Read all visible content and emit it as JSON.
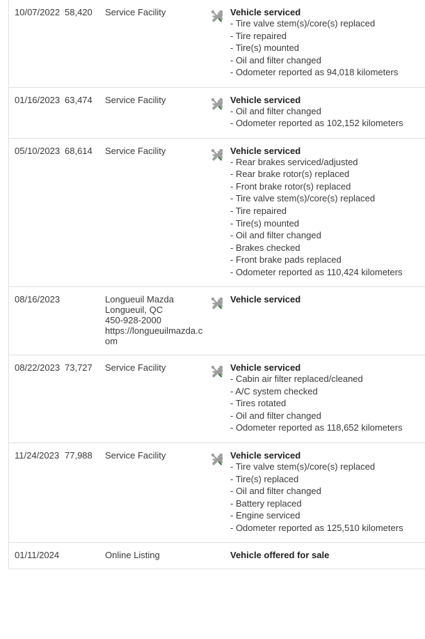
{
  "colors": {
    "border": "#e0e0e0",
    "text": "#3a3a3a",
    "heading": "#222222",
    "icon_wrench": "#9e9e9e",
    "icon_accent": "#2e7d32"
  },
  "rows": [
    {
      "date": "10/07/2022",
      "mileage": "58,420",
      "source_lines": [
        "Service Facility"
      ],
      "has_icon": true,
      "heading": "Vehicle serviced",
      "details": [
        "- Tire valve stem(s)/core(s) replaced",
        "- Tire repaired",
        "- Tire(s) mounted",
        "- Oil and filter changed",
        "- Odometer reported as 94,018 kilometers"
      ]
    },
    {
      "date": "01/16/2023",
      "mileage": "63,474",
      "source_lines": [
        "Service Facility"
      ],
      "has_icon": true,
      "heading": "Vehicle serviced",
      "details": [
        "- Oil and filter changed",
        "- Odometer reported as 102,152 kilometers"
      ]
    },
    {
      "date": "05/10/2023",
      "mileage": "68,614",
      "source_lines": [
        "Service Facility"
      ],
      "has_icon": true,
      "heading": "Vehicle serviced",
      "details": [
        "- Rear brakes serviced/adjusted",
        "- Rear brake rotor(s) replaced",
        "- Front brake rotor(s) replaced",
        "- Tire valve stem(s)/core(s) replaced",
        "- Tire repaired",
        "- Tire(s) mounted",
        "- Oil and filter changed",
        "- Brakes checked",
        "- Front brake pads replaced",
        "- Odometer reported as 110,424 kilometers"
      ]
    },
    {
      "date": "08/16/2023",
      "mileage": "",
      "source_lines": [
        "Longueuil Mazda",
        "Longueuil, QC",
        "450-928-2000",
        "https://longueuilmazda.com"
      ],
      "has_icon": true,
      "heading": "Vehicle serviced",
      "details": []
    },
    {
      "date": "08/22/2023",
      "mileage": "73,727",
      "source_lines": [
        "Service Facility"
      ],
      "has_icon": true,
      "heading": "Vehicle serviced",
      "details": [
        "- Cabin air filter replaced/cleaned",
        "- A/C system checked",
        "- Tires rotated",
        "- Oil and filter changed",
        "- Odometer reported as 118,652 kilometers"
      ]
    },
    {
      "date": "11/24/2023",
      "mileage": "77,988",
      "source_lines": [
        "Service Facility"
      ],
      "has_icon": true,
      "heading": "Vehicle serviced",
      "details": [
        "- Tire valve stem(s)/core(s) replaced",
        "- Tire(s) replaced",
        "- Oil and filter changed",
        "- Battery replaced",
        "- Engine serviced",
        "- Odometer reported as 125,510 kilometers"
      ]
    },
    {
      "date": "01/11/2024",
      "mileage": "",
      "source_lines": [
        "Online Listing"
      ],
      "has_icon": false,
      "heading": "Vehicle offered for sale",
      "details": []
    }
  ]
}
